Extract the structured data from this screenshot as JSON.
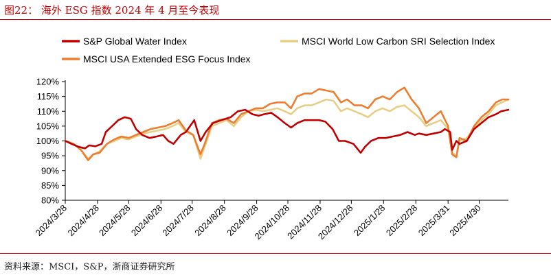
{
  "header": {
    "figure_title": "图22：  海外 ESG 指数 2024 年 4 月至今表现"
  },
  "footer": {
    "source": "资料来源：MSCI，S&P，浙商证券研究所"
  },
  "chart_data": {
    "type": "line",
    "title": "",
    "xlabel": "",
    "ylabel": "",
    "ylim": [
      0.8,
      1.2
    ],
    "yticks": [
      0.8,
      0.85,
      0.9,
      0.95,
      1.0,
      1.05,
      1.1,
      1.15,
      1.2
    ],
    "ytick_labels": [
      "80%",
      "85%",
      "90%",
      "95%",
      "100%",
      "105%",
      "110%",
      "115%",
      "120%"
    ],
    "xlim": [
      "2024-03-28",
      "2025-05-28"
    ],
    "xticks": [
      "2024-03-28",
      "2024-04-28",
      "2024-05-28",
      "2024-06-28",
      "2024-07-28",
      "2024-08-28",
      "2024-09-28",
      "2024-10-28",
      "2024-11-28",
      "2024-12-28",
      "2025-01-28",
      "2025-02-28",
      "2025-03-31",
      "2025-04-30"
    ],
    "xtick_labels": [
      "2024/3/28",
      "2024/4/28",
      "2024/5/28",
      "2024/6/28",
      "2024/7/28",
      "2024/8/28",
      "2024/9/28",
      "2024/10/28",
      "2024/11/28",
      "2024/12/28",
      "2025/1/28",
      "2025/2/28",
      "2025/3/31",
      "2025/4/30"
    ],
    "grid": false,
    "legend_position": "top",
    "series": [
      {
        "name": "S&P Global Water Index",
        "color": "#c00000",
        "points": [
          [
            "2024-03-28",
            1.0
          ],
          [
            "2024-04-03",
            0.99
          ],
          [
            "2024-04-10",
            0.98
          ],
          [
            "2024-04-16",
            0.975
          ],
          [
            "2024-04-20",
            0.985
          ],
          [
            "2024-04-26",
            0.982
          ],
          [
            "2024-05-02",
            0.99
          ],
          [
            "2024-05-06",
            1.03
          ],
          [
            "2024-05-12",
            1.05
          ],
          [
            "2024-05-18",
            1.07
          ],
          [
            "2024-05-24",
            1.08
          ],
          [
            "2024-05-30",
            1.075
          ],
          [
            "2024-06-04",
            1.04
          ],
          [
            "2024-06-10",
            1.02
          ],
          [
            "2024-06-17",
            1.01
          ],
          [
            "2024-06-24",
            1.015
          ],
          [
            "2024-06-30",
            1.02
          ],
          [
            "2024-07-05",
            1.0
          ],
          [
            "2024-07-10",
            0.99
          ],
          [
            "2024-07-17",
            1.02
          ],
          [
            "2024-07-22",
            1.03
          ],
          [
            "2024-07-30",
            1.07
          ],
          [
            "2024-08-05",
            1.0
          ],
          [
            "2024-08-10",
            1.03
          ],
          [
            "2024-08-17",
            1.06
          ],
          [
            "2024-08-25",
            1.07
          ],
          [
            "2024-09-03",
            1.08
          ],
          [
            "2024-09-10",
            1.1
          ],
          [
            "2024-09-17",
            1.105
          ],
          [
            "2024-09-24",
            1.09
          ],
          [
            "2024-09-30",
            1.085
          ],
          [
            "2024-10-05",
            1.09
          ],
          [
            "2024-10-12",
            1.095
          ],
          [
            "2024-10-18",
            1.08
          ],
          [
            "2024-10-25",
            1.06
          ],
          [
            "2024-10-31",
            1.045
          ],
          [
            "2024-11-06",
            1.06
          ],
          [
            "2024-11-13",
            1.07
          ],
          [
            "2024-11-20",
            1.07
          ],
          [
            "2024-11-27",
            1.07
          ],
          [
            "2024-12-03",
            1.065
          ],
          [
            "2024-12-10",
            1.04
          ],
          [
            "2024-12-16",
            1.0
          ],
          [
            "2024-12-22",
            1.0
          ],
          [
            "2024-12-30",
            0.99
          ],
          [
            "2025-01-06",
            0.96
          ],
          [
            "2025-01-10",
            0.98
          ],
          [
            "2025-01-16",
            1.0
          ],
          [
            "2025-01-23",
            1.01
          ],
          [
            "2025-01-30",
            1.01
          ],
          [
            "2025-02-06",
            1.015
          ],
          [
            "2025-02-13",
            1.02
          ],
          [
            "2025-02-20",
            1.03
          ],
          [
            "2025-02-27",
            1.02
          ],
          [
            "2025-03-03",
            1.025
          ],
          [
            "2025-03-10",
            1.02
          ],
          [
            "2025-03-17",
            1.025
          ],
          [
            "2025-03-24",
            1.03
          ],
          [
            "2025-03-28",
            1.04
          ],
          [
            "2025-04-02",
            1.03
          ],
          [
            "2025-04-04",
            0.97
          ],
          [
            "2025-04-08",
            1.0
          ],
          [
            "2025-04-11",
            0.99
          ],
          [
            "2025-04-18",
            1.0
          ],
          [
            "2025-04-25",
            1.04
          ],
          [
            "2025-05-02",
            1.06
          ],
          [
            "2025-05-09",
            1.08
          ],
          [
            "2025-05-16",
            1.09
          ],
          [
            "2025-05-21",
            1.1
          ],
          [
            "2025-05-28",
            1.105
          ]
        ]
      },
      {
        "name": "MSCI World Low Carbon SRI Selection Index",
        "color": "#e8cf86",
        "points": [
          [
            "2024-03-28",
            1.0
          ],
          [
            "2024-04-05",
            0.99
          ],
          [
            "2024-04-12",
            0.97
          ],
          [
            "2024-04-19",
            0.94
          ],
          [
            "2024-04-24",
            0.955
          ],
          [
            "2024-04-30",
            0.965
          ],
          [
            "2024-05-07",
            0.99
          ],
          [
            "2024-05-14",
            1.0
          ],
          [
            "2024-05-21",
            1.01
          ],
          [
            "2024-05-28",
            1.005
          ],
          [
            "2024-06-04",
            1.015
          ],
          [
            "2024-06-11",
            1.025
          ],
          [
            "2024-06-18",
            1.03
          ],
          [
            "2024-06-25",
            1.035
          ],
          [
            "2024-07-02",
            1.04
          ],
          [
            "2024-07-09",
            1.05
          ],
          [
            "2024-07-15",
            1.06
          ],
          [
            "2024-07-22",
            1.03
          ],
          [
            "2024-07-29",
            1.02
          ],
          [
            "2024-08-05",
            0.94
          ],
          [
            "2024-08-09",
            0.98
          ],
          [
            "2024-08-16",
            1.05
          ],
          [
            "2024-08-23",
            1.06
          ],
          [
            "2024-08-30",
            1.07
          ],
          [
            "2024-09-06",
            1.05
          ],
          [
            "2024-09-13",
            1.08
          ],
          [
            "2024-09-20",
            1.1
          ],
          [
            "2024-09-27",
            1.105
          ],
          [
            "2024-10-04",
            1.1
          ],
          [
            "2024-10-11",
            1.105
          ],
          [
            "2024-10-18",
            1.11
          ],
          [
            "2024-10-25",
            1.1
          ],
          [
            "2024-10-31",
            1.09
          ],
          [
            "2024-11-06",
            1.11
          ],
          [
            "2024-11-13",
            1.12
          ],
          [
            "2024-11-20",
            1.12
          ],
          [
            "2024-11-27",
            1.13
          ],
          [
            "2024-12-04",
            1.14
          ],
          [
            "2024-12-11",
            1.135
          ],
          [
            "2024-12-18",
            1.1
          ],
          [
            "2024-12-24",
            1.11
          ],
          [
            "2024-12-31",
            1.1
          ],
          [
            "2025-01-07",
            1.09
          ],
          [
            "2025-01-13",
            1.08
          ],
          [
            "2025-01-20",
            1.1
          ],
          [
            "2025-01-27",
            1.11
          ],
          [
            "2025-02-03",
            1.1
          ],
          [
            "2025-02-10",
            1.115
          ],
          [
            "2025-02-17",
            1.12
          ],
          [
            "2025-02-24",
            1.1
          ],
          [
            "2025-03-03",
            1.08
          ],
          [
            "2025-03-10",
            1.05
          ],
          [
            "2025-03-17",
            1.06
          ],
          [
            "2025-03-24",
            1.07
          ],
          [
            "2025-03-31",
            1.04
          ],
          [
            "2025-04-04",
            0.96
          ],
          [
            "2025-04-08",
            0.95
          ],
          [
            "2025-04-11",
            1.0
          ],
          [
            "2025-04-18",
            1.01
          ],
          [
            "2025-04-25",
            1.04
          ],
          [
            "2025-05-02",
            1.07
          ],
          [
            "2025-05-09",
            1.09
          ],
          [
            "2025-05-16",
            1.12
          ],
          [
            "2025-05-22",
            1.13
          ],
          [
            "2025-05-28",
            1.14
          ]
        ]
      },
      {
        "name": "MSCI USA Extended ESG Focus Index",
        "color": "#ed7d31",
        "points": [
          [
            "2024-03-28",
            1.0
          ],
          [
            "2024-04-05",
            0.99
          ],
          [
            "2024-04-12",
            0.97
          ],
          [
            "2024-04-19",
            0.935
          ],
          [
            "2024-04-24",
            0.955
          ],
          [
            "2024-04-30",
            0.96
          ],
          [
            "2024-05-07",
            0.99
          ],
          [
            "2024-05-14",
            1.005
          ],
          [
            "2024-05-21",
            1.015
          ],
          [
            "2024-05-28",
            1.01
          ],
          [
            "2024-06-04",
            1.02
          ],
          [
            "2024-06-11",
            1.03
          ],
          [
            "2024-06-18",
            1.04
          ],
          [
            "2024-06-25",
            1.045
          ],
          [
            "2024-07-02",
            1.05
          ],
          [
            "2024-07-09",
            1.06
          ],
          [
            "2024-07-15",
            1.07
          ],
          [
            "2024-07-22",
            1.035
          ],
          [
            "2024-07-29",
            1.02
          ],
          [
            "2024-08-05",
            0.955
          ],
          [
            "2024-08-09",
            0.99
          ],
          [
            "2024-08-16",
            1.06
          ],
          [
            "2024-08-23",
            1.07
          ],
          [
            "2024-08-30",
            1.075
          ],
          [
            "2024-09-06",
            1.06
          ],
          [
            "2024-09-13",
            1.09
          ],
          [
            "2024-09-20",
            1.1
          ],
          [
            "2024-09-27",
            1.11
          ],
          [
            "2024-10-04",
            1.11
          ],
          [
            "2024-10-11",
            1.125
          ],
          [
            "2024-10-18",
            1.13
          ],
          [
            "2024-10-25",
            1.13
          ],
          [
            "2024-10-31",
            1.11
          ],
          [
            "2024-11-06",
            1.15
          ],
          [
            "2024-11-13",
            1.16
          ],
          [
            "2024-11-20",
            1.16
          ],
          [
            "2024-11-27",
            1.175
          ],
          [
            "2024-12-04",
            1.17
          ],
          [
            "2024-12-11",
            1.165
          ],
          [
            "2024-12-18",
            1.13
          ],
          [
            "2024-12-24",
            1.14
          ],
          [
            "2024-12-31",
            1.12
          ],
          [
            "2025-01-07",
            1.12
          ],
          [
            "2025-01-13",
            1.11
          ],
          [
            "2025-01-20",
            1.14
          ],
          [
            "2025-01-27",
            1.15
          ],
          [
            "2025-02-03",
            1.14
          ],
          [
            "2025-02-10",
            1.165
          ],
          [
            "2025-02-17",
            1.18
          ],
          [
            "2025-02-24",
            1.14
          ],
          [
            "2025-03-03",
            1.11
          ],
          [
            "2025-03-10",
            1.06
          ],
          [
            "2025-03-17",
            1.08
          ],
          [
            "2025-03-24",
            1.1
          ],
          [
            "2025-03-31",
            1.05
          ],
          [
            "2025-04-04",
            0.955
          ],
          [
            "2025-04-08",
            0.945
          ],
          [
            "2025-04-11",
            1.01
          ],
          [
            "2025-04-18",
            1.0
          ],
          [
            "2025-04-25",
            1.05
          ],
          [
            "2025-05-02",
            1.08
          ],
          [
            "2025-05-09",
            1.1
          ],
          [
            "2025-05-16",
            1.13
          ],
          [
            "2025-05-22",
            1.14
          ],
          [
            "2025-05-28",
            1.14
          ]
        ]
      }
    ]
  }
}
